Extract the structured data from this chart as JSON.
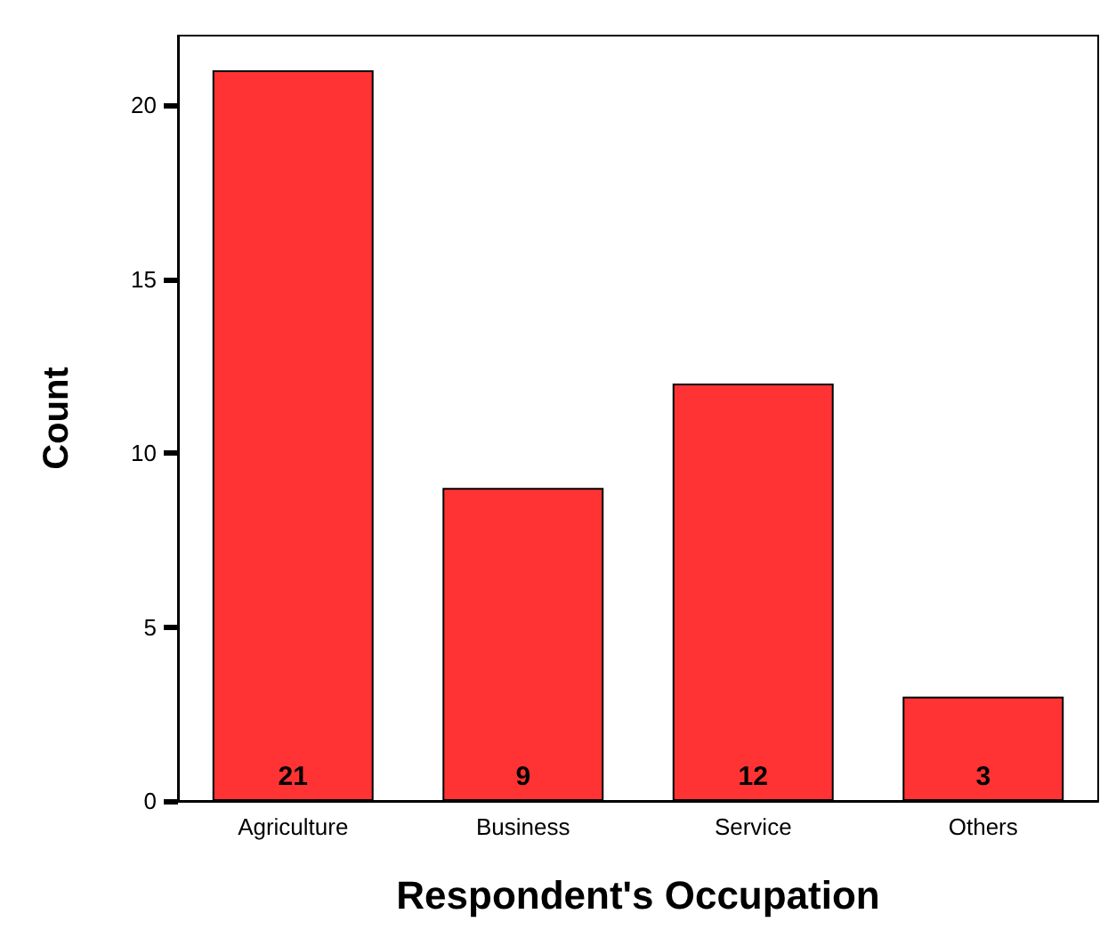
{
  "chart_data": {
    "type": "bar",
    "xlabel": "Respondent's Occupation",
    "ylabel": "Count",
    "categories": [
      "Agriculture",
      "Business",
      "Service",
      "Others"
    ],
    "values": [
      21,
      9,
      12,
      3
    ],
    "color": "#ff3333",
    "ylim": [
      0,
      22
    ],
    "yticks": [
      0,
      5,
      10,
      15,
      20
    ],
    "grid": false,
    "data_labels": true
  }
}
